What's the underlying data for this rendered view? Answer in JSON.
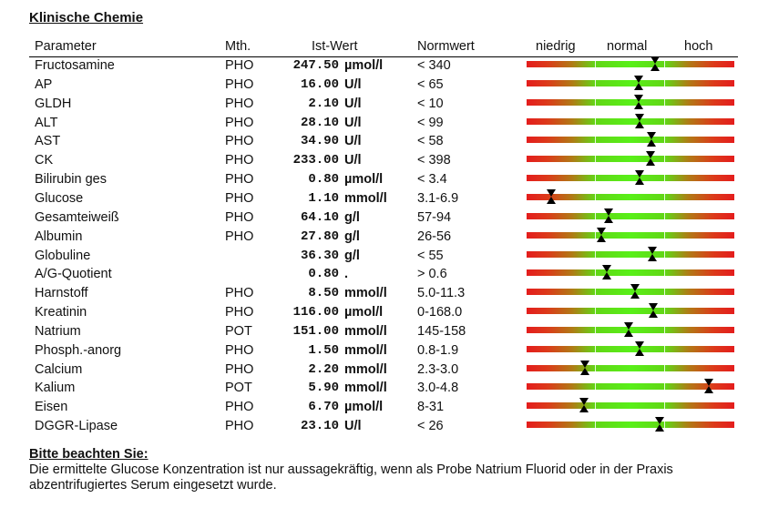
{
  "section_title": "Klinische Chemie",
  "headers": {
    "parameter": "Parameter",
    "method": "Mth.",
    "value": "Ist-Wert",
    "reference": "Normwert",
    "low": "niedrig",
    "normal": "normal",
    "high": "hoch"
  },
  "rows": [
    {
      "parameter": "Fructosamine",
      "method": "PHO",
      "value": "247.50",
      "unit": "µmol/l",
      "reference": "< 340",
      "gauge_level": 0.62
    },
    {
      "parameter": "AP",
      "method": "PHO",
      "value": "16.00",
      "unit": "U/l",
      "reference": "< 65",
      "gauge_level": 0.54
    },
    {
      "parameter": "GLDH",
      "method": "PHO",
      "value": "2.10",
      "unit": "U/l",
      "reference": "< 10",
      "gauge_level": 0.54
    },
    {
      "parameter": "ALT",
      "method": "PHO",
      "value": "28.10",
      "unit": "U/l",
      "reference": "< 99",
      "gauge_level": 0.545
    },
    {
      "parameter": "AST",
      "method": "PHO",
      "value": "34.90",
      "unit": "U/l",
      "reference": "< 58",
      "gauge_level": 0.6
    },
    {
      "parameter": "CK",
      "method": "PHO",
      "value": "233.00",
      "unit": "U/l",
      "reference": "< 398",
      "gauge_level": 0.595
    },
    {
      "parameter": "Bilirubin ges",
      "method": "PHO",
      "value": "0.80",
      "unit": "µmol/l",
      "reference": "< 3.4",
      "gauge_level": 0.545
    },
    {
      "parameter": "Glucose",
      "method": "PHO",
      "value": "1.10",
      "unit": "mmol/l",
      "reference": "3.1-6.9",
      "gauge_level": 0.12
    },
    {
      "parameter": "Gesamteiweiß",
      "method": "PHO",
      "value": "64.10",
      "unit": "g/l",
      "reference": "57-94",
      "gauge_level": 0.395
    },
    {
      "parameter": "Albumin",
      "method": "PHO",
      "value": "27.80",
      "unit": "g/l",
      "reference": "26-56",
      "gauge_level": 0.36
    },
    {
      "parameter": "Globuline",
      "method": "",
      "value": "36.30",
      "unit": "g/l",
      "reference": "< 55",
      "gauge_level": 0.605
    },
    {
      "parameter": "A/G-Quotient",
      "method": "",
      "value": "0.80",
      "unit": ".",
      "reference": "> 0.6",
      "gauge_level": 0.385
    },
    {
      "parameter": "Harnstoff",
      "method": "PHO",
      "value": "8.50",
      "unit": "mmol/l",
      "reference": "5.0-11.3",
      "gauge_level": 0.52
    },
    {
      "parameter": "Kreatinin",
      "method": "PHO",
      "value": "116.00",
      "unit": "µmol/l",
      "reference": "0-168.0",
      "gauge_level": 0.61
    },
    {
      "parameter": "Natrium",
      "method": "POT",
      "value": "151.00",
      "unit": "mmol/l",
      "reference": "145-158",
      "gauge_level": 0.49
    },
    {
      "parameter": "Phosph.-anorg",
      "method": "PHO",
      "value": "1.50",
      "unit": "mmol/l",
      "reference": "0.8-1.9",
      "gauge_level": 0.545
    },
    {
      "parameter": "Calcium",
      "method": "PHO",
      "value": "2.20",
      "unit": "mmol/l",
      "reference": "2.3-3.0",
      "gauge_level": 0.28
    },
    {
      "parameter": "Kalium",
      "method": "POT",
      "value": "5.90",
      "unit": "mmol/l",
      "reference": "3.0-4.8",
      "gauge_level": 0.875
    },
    {
      "parameter": "Eisen",
      "method": "PHO",
      "value": "6.70",
      "unit": "µmol/l",
      "reference": "8-31",
      "gauge_level": 0.275
    },
    {
      "parameter": "DGGR-Lipase",
      "method": "PHO",
      "value": "23.10",
      "unit": "U/l",
      "reference": "< 26",
      "gauge_level": 0.64
    }
  ],
  "colors": {
    "low": "#e41d1d",
    "normal": "#58f018",
    "marker": "#000000"
  },
  "marker_icon": "hourglass-marker-icon",
  "note": {
    "title": "Bitte beachten Sie:",
    "text": "Die ermittelte Glucose Konzentration ist nur aussagekräftig, wenn als Probe Natrium Fluorid oder in der Praxis abzentrifugiertes Serum eingesetzt wurde."
  }
}
